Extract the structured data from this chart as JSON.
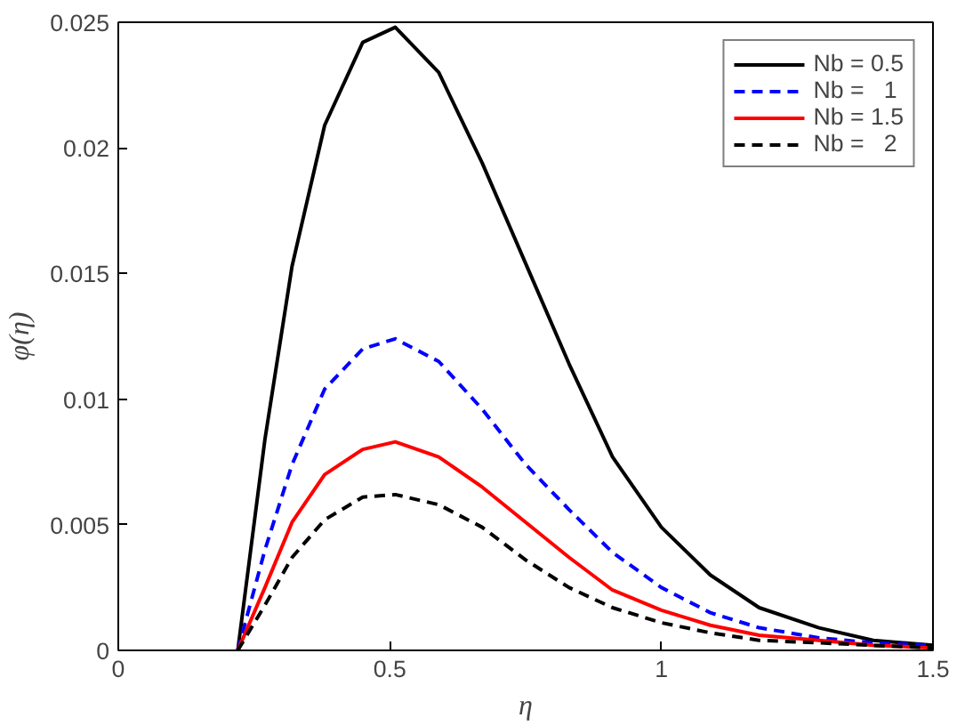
{
  "chart_data": {
    "type": "line",
    "xlabel": "η",
    "ylabel": "φ(η)",
    "x": [
      0.22,
      0.27,
      0.32,
      0.38,
      0.45,
      0.51,
      0.59,
      0.67,
      0.75,
      0.83,
      0.91,
      1.0,
      1.09,
      1.18,
      1.29,
      1.39,
      1.5
    ],
    "series": [
      {
        "name": "Nb = 0.5",
        "color": "#000000",
        "line_style": "solid",
        "values": [
          0,
          0.0084,
          0.0153,
          0.0209,
          0.0242,
          0.0248,
          0.023,
          0.0194,
          0.0154,
          0.0114,
          0.0077,
          0.0049,
          0.003,
          0.0017,
          0.0009,
          0.0004,
          0.0002
        ]
      },
      {
        "name": "Nb =   1",
        "color": "#0000ff",
        "line_style": "dashed",
        "values": [
          0,
          0.004,
          0.0074,
          0.0104,
          0.012,
          0.0124,
          0.0115,
          0.0096,
          0.0074,
          0.0056,
          0.0039,
          0.0025,
          0.0015,
          0.0009,
          0.0005,
          0.0003,
          0.0002
        ]
      },
      {
        "name": "Nb = 1.5",
        "color": "#ff0000",
        "line_style": "solid",
        "values": [
          0,
          0.0025,
          0.0051,
          0.007,
          0.008,
          0.0083,
          0.0077,
          0.0065,
          0.0051,
          0.0037,
          0.0024,
          0.0016,
          0.001,
          0.0006,
          0.0004,
          0.0002,
          0.0001
        ]
      },
      {
        "name": "Nb =   2",
        "color": "#000000",
        "line_style": "dashed",
        "values": [
          0,
          0.0018,
          0.0037,
          0.0052,
          0.0061,
          0.0062,
          0.0058,
          0.0049,
          0.0036,
          0.0025,
          0.0017,
          0.0011,
          0.0007,
          0.0004,
          0.0003,
          0.0002,
          0.0001
        ]
      }
    ],
    "xlim": [
      0,
      1.5
    ],
    "ylim": [
      0,
      0.025
    ],
    "xticks": [
      0,
      0.5,
      1,
      1.5
    ],
    "yticks": [
      0,
      0.005,
      0.01,
      0.015,
      0.02,
      0.025
    ],
    "grid": false,
    "legend": "top right",
    "marker": "none"
  }
}
